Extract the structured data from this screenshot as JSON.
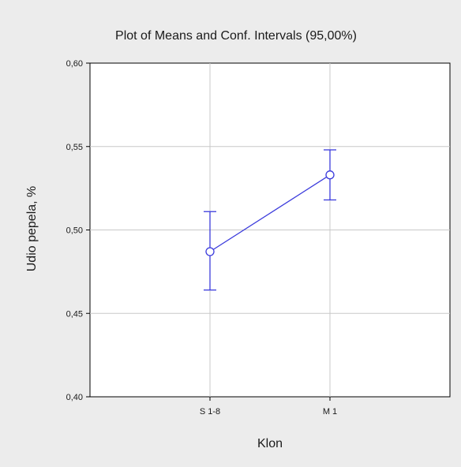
{
  "chart_data": {
    "type": "line",
    "title": "Plot of Means and Conf. Intervals (95,00%)",
    "xlabel": "Klon",
    "ylabel": "Udio pepela, %",
    "categories": [
      "S 1-8",
      "M 1"
    ],
    "series": [
      {
        "values": [
          0.487,
          0.533
        ],
        "ci_lower": [
          0.464,
          0.518
        ],
        "ci_upper": [
          0.511,
          0.548
        ]
      }
    ],
    "ylim": [
      0.4,
      0.6
    ],
    "yticks": [
      0.4,
      0.45,
      0.5,
      0.55,
      0.6
    ],
    "ytick_labels": [
      "0,40",
      "0,45",
      "0,50",
      "0,55",
      "0,60"
    ],
    "grid": true,
    "colors": {
      "series": "#3b3bdc",
      "grid": "#c8c8c8",
      "axis": "#000000",
      "plot_bg": "#ffffff",
      "page_bg": "#ececec"
    }
  }
}
